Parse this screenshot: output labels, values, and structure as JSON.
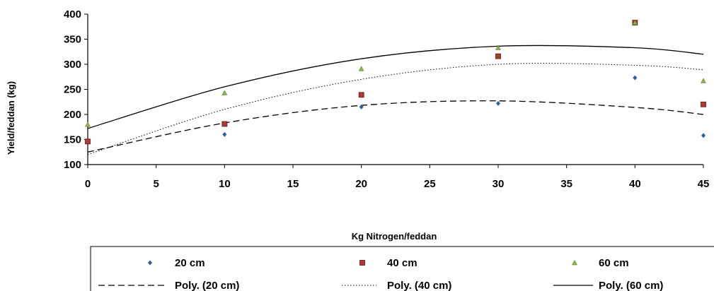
{
  "chart_data": {
    "type": "scatter",
    "xlabel": "Kg Nitrogen/feddan",
    "ylabel": "Yield/feddan (kg)",
    "xlim": [
      0,
      45
    ],
    "ylim": [
      100,
      400
    ],
    "xticks": [
      0,
      5,
      10,
      15,
      20,
      25,
      30,
      35,
      40,
      45
    ],
    "yticks": [
      100,
      150,
      200,
      250,
      300,
      350,
      400
    ],
    "grid": false,
    "legend_position": "bottom",
    "series": [
      {
        "name": "20 cm",
        "marker": "diamond",
        "color": "#2E5E9E",
        "x": [
          0,
          10,
          20,
          30,
          40,
          45
        ],
        "y": [
          145,
          160,
          215,
          222,
          273,
          158
        ]
      },
      {
        "name": "40 cm",
        "marker": "square",
        "color": "#B03A32",
        "x": [
          0,
          10,
          20,
          30,
          40,
          45
        ],
        "y": [
          146,
          181,
          239,
          316,
          383,
          220
        ]
      },
      {
        "name": "60 cm",
        "marker": "triangle",
        "color": "#8FB34A",
        "x": [
          0,
          10,
          20,
          30,
          40,
          45
        ],
        "y": [
          180,
          243,
          291,
          333,
          383,
          267
        ]
      }
    ],
    "trendlines": [
      {
        "name": "Poly. (20 cm)",
        "style": "dashed",
        "color": "#000000",
        "x": [
          0,
          10,
          20,
          30,
          40,
          45
        ],
        "y": [
          125,
          183,
          218,
          227,
          214,
          200
        ]
      },
      {
        "name": "Poly. (40 cm)",
        "style": "dotted",
        "color": "#000000",
        "x": [
          0,
          10,
          20,
          30,
          40,
          45
        ],
        "y": [
          120,
          210,
          270,
          300,
          298,
          289
        ]
      },
      {
        "name": "Poly. (60 cm)",
        "style": "solid",
        "color": "#000000",
        "x": [
          0,
          10,
          20,
          30,
          40,
          45
        ],
        "y": [
          172,
          255,
          311,
          336,
          333,
          320
        ]
      }
    ]
  }
}
